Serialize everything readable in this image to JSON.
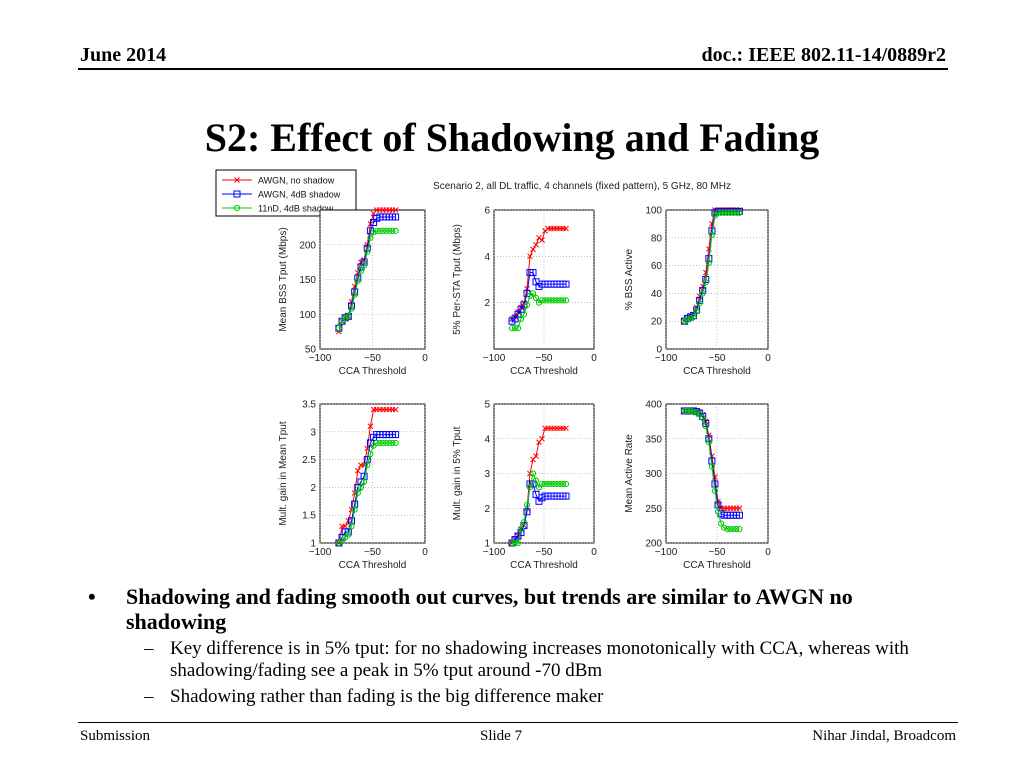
{
  "header": {
    "date": "June 2014",
    "doc": "doc.: IEEE 802.11-14/0889r2"
  },
  "slide_title": "S2: Effect of Shadowing and Fading",
  "figure_title": "Scenario 2, all DL traffic, 4 channels (fixed pattern), 5 GHz, 80 MHz",
  "legend": [
    {
      "name": "AWGN, no shadow",
      "color": "#ff0000",
      "marker": "x"
    },
    {
      "name": "AWGN, 4dB shadow",
      "color": "#0000ff",
      "marker": "square"
    },
    {
      "name": "11nD, 4dB shadow",
      "color": "#00cc00",
      "marker": "circle"
    }
  ],
  "chart_data": [
    {
      "type": "line",
      "ylabel": "Mean BSS Tput (Mbps)",
      "xlabel": "CCA Threshold",
      "xlim": [
        -100,
        0
      ],
      "ylim": [
        50,
        250
      ],
      "xticks": [
        "−100",
        "−50",
        "0"
      ],
      "yticks": [
        "50",
        "100",
        "150",
        "200"
      ],
      "ytick_values": [
        50,
        100,
        150,
        200
      ],
      "x": [
        -82,
        -79,
        -76,
        -73,
        -70,
        -67,
        -64,
        -61,
        -58,
        -55,
        -52,
        -49,
        -46,
        -43,
        -40,
        -37,
        -34,
        -31,
        -28
      ],
      "series": [
        {
          "name": "AWGN, no shadow",
          "values": [
            75,
            90,
            95,
            97,
            118,
            140,
            160,
            175,
            178,
            200,
            230,
            245,
            250,
            250,
            250,
            250,
            250,
            250,
            250
          ]
        },
        {
          "name": "AWGN, 4dB shadow",
          "values": [
            80,
            90,
            95,
            97,
            112,
            132,
            152,
            168,
            175,
            195,
            220,
            232,
            238,
            240,
            240,
            240,
            240,
            240,
            240
          ]
        },
        {
          "name": "11nD, 4dB shadow",
          "values": [
            80,
            90,
            95,
            97,
            108,
            128,
            148,
            162,
            170,
            190,
            210,
            218,
            220,
            220,
            220,
            220,
            220,
            220,
            220
          ]
        }
      ]
    },
    {
      "type": "line",
      "ylabel": "5% Per-STA Tput (Mbps)",
      "xlabel": "CCA Threshold",
      "xlim": [
        -100,
        0
      ],
      "ylim": [
        0,
        6
      ],
      "xticks": [
        "−100",
        "−50",
        "0"
      ],
      "yticks": [
        "2",
        "4",
        "6"
      ],
      "ytick_values": [
        2,
        4,
        6
      ],
      "x": [
        -82,
        -79,
        -76,
        -73,
        -70,
        -67,
        -64,
        -61,
        -58,
        -55,
        -52,
        -49,
        -46,
        -43,
        -40,
        -37,
        -34,
        -31,
        -28
      ],
      "series": [
        {
          "name": "AWGN, no shadow",
          "values": [
            1.3,
            1.4,
            1.6,
            1.8,
            2.0,
            2.6,
            4.0,
            4.3,
            4.5,
            4.8,
            4.7,
            5.1,
            5.2,
            5.2,
            5.2,
            5.2,
            5.2,
            5.2,
            5.2
          ]
        },
        {
          "name": "AWGN, 4dB shadow",
          "values": [
            1.2,
            1.3,
            1.5,
            1.7,
            1.9,
            2.4,
            3.3,
            3.3,
            2.9,
            2.7,
            2.8,
            2.8,
            2.8,
            2.8,
            2.8,
            2.8,
            2.8,
            2.8,
            2.8
          ]
        },
        {
          "name": "11nD, 4dB shadow",
          "values": [
            0.9,
            0.9,
            0.9,
            1.3,
            1.5,
            1.9,
            2.3,
            2.4,
            2.2,
            2.0,
            2.1,
            2.1,
            2.1,
            2.1,
            2.1,
            2.1,
            2.1,
            2.1,
            2.1
          ]
        }
      ]
    },
    {
      "type": "line",
      "ylabel": "% BSS Active",
      "xlabel": "CCA Threshold",
      "xlim": [
        -100,
        0
      ],
      "ylim": [
        0,
        100
      ],
      "xticks": [
        "−100",
        "−50",
        "0"
      ],
      "yticks": [
        "0",
        "20",
        "40",
        "60",
        "80",
        "100"
      ],
      "ytick_values": [
        0,
        20,
        40,
        60,
        80,
        100
      ],
      "x": [
        -82,
        -79,
        -76,
        -73,
        -70,
        -67,
        -64,
        -61,
        -58,
        -55,
        -52,
        -49,
        -46,
        -43,
        -40,
        -37,
        -34,
        -31,
        -28
      ],
      "series": [
        {
          "name": "AWGN, no shadow",
          "values": [
            20,
            22,
            24,
            25,
            30,
            38,
            45,
            55,
            72,
            90,
            100,
            100,
            100,
            100,
            100,
            100,
            100,
            100,
            100
          ]
        },
        {
          "name": "AWGN, 4dB shadow",
          "values": [
            20,
            22,
            23,
            24,
            28,
            35,
            42,
            50,
            65,
            85,
            98,
            99,
            99,
            99,
            99,
            99,
            99,
            99,
            99
          ]
        },
        {
          "name": "11nD, 4dB shadow",
          "values": [
            20,
            21,
            22,
            23,
            27,
            33,
            40,
            48,
            62,
            82,
            96,
            98,
            98,
            98,
            98,
            98,
            98,
            98,
            98
          ]
        }
      ]
    },
    {
      "type": "line",
      "ylabel": "Mult. gain in Mean Tput",
      "xlabel": "CCA Threshold",
      "xlim": [
        -100,
        0
      ],
      "ylim": [
        1,
        3.5
      ],
      "xticks": [
        "−100",
        "−50",
        "0"
      ],
      "yticks": [
        "1",
        "1.5",
        "2",
        "2.5",
        "3",
        "3.5"
      ],
      "ytick_values": [
        1,
        1.5,
        2,
        2.5,
        3,
        3.5
      ],
      "x": [
        -82,
        -79,
        -76,
        -73,
        -70,
        -67,
        -64,
        -61,
        -58,
        -55,
        -52,
        -49,
        -46,
        -43,
        -40,
        -37,
        -34,
        -31,
        -28
      ],
      "series": [
        {
          "name": "AWGN, no shadow",
          "values": [
            1.0,
            1.3,
            1.3,
            1.4,
            1.6,
            1.9,
            2.3,
            2.4,
            2.4,
            2.7,
            3.1,
            3.4,
            3.4,
            3.4,
            3.4,
            3.4,
            3.4,
            3.4,
            3.4
          ]
        },
        {
          "name": "AWGN, 4dB shadow",
          "values": [
            1.0,
            1.1,
            1.2,
            1.2,
            1.4,
            1.7,
            2.0,
            2.1,
            2.2,
            2.5,
            2.8,
            2.9,
            2.95,
            2.95,
            2.95,
            2.95,
            2.95,
            2.95,
            2.95
          ]
        },
        {
          "name": "11nD, 4dB shadow",
          "values": [
            1.0,
            1.05,
            1.1,
            1.15,
            1.3,
            1.6,
            1.9,
            2.0,
            2.1,
            2.4,
            2.6,
            2.75,
            2.8,
            2.8,
            2.8,
            2.8,
            2.8,
            2.8,
            2.8
          ]
        }
      ]
    },
    {
      "type": "line",
      "ylabel": "Mult. gain in 5% Tput",
      "xlabel": "CCA Threshold",
      "xlim": [
        -100,
        0
      ],
      "ylim": [
        1,
        5
      ],
      "xticks": [
        "−100",
        "−50",
        "0"
      ],
      "yticks": [
        "1",
        "2",
        "3",
        "4",
        "5"
      ],
      "ytick_values": [
        1,
        2,
        3,
        4,
        5
      ],
      "x": [
        -82,
        -79,
        -76,
        -73,
        -70,
        -67,
        -64,
        -61,
        -58,
        -55,
        -52,
        -49,
        -46,
        -43,
        -40,
        -37,
        -34,
        -31,
        -28
      ],
      "series": [
        {
          "name": "AWGN, no shadow",
          "values": [
            1.0,
            1.1,
            1.2,
            1.4,
            1.5,
            2.0,
            3.0,
            3.4,
            3.5,
            3.9,
            4.0,
            4.3,
            4.3,
            4.3,
            4.3,
            4.3,
            4.3,
            4.3,
            4.3
          ]
        },
        {
          "name": "AWGN, 4dB shadow",
          "values": [
            1.0,
            1.1,
            1.2,
            1.3,
            1.5,
            1.9,
            2.7,
            2.7,
            2.4,
            2.2,
            2.3,
            2.35,
            2.35,
            2.35,
            2.35,
            2.35,
            2.35,
            2.35,
            2.35
          ]
        },
        {
          "name": "11nD, 4dB shadow",
          "values": [
            1.0,
            1.0,
            1.0,
            1.4,
            1.6,
            2.1,
            2.6,
            3.0,
            2.8,
            2.6,
            2.7,
            2.7,
            2.7,
            2.7,
            2.7,
            2.7,
            2.7,
            2.7,
            2.7
          ]
        }
      ]
    },
    {
      "type": "line",
      "ylabel": "Mean Active Rate",
      "xlabel": "CCA Threshold",
      "xlim": [
        -100,
        0
      ],
      "ylim": [
        200,
        400
      ],
      "xticks": [
        "−100",
        "−50",
        "0"
      ],
      "yticks": [
        "200",
        "250",
        "300",
        "350",
        "400"
      ],
      "ytick_values": [
        200,
        250,
        300,
        350,
        400
      ],
      "x": [
        -82,
        -79,
        -76,
        -73,
        -70,
        -67,
        -64,
        -61,
        -58,
        -55,
        -52,
        -49,
        -46,
        -43,
        -40,
        -37,
        -34,
        -31,
        -28
      ],
      "series": [
        {
          "name": "AWGN, no shadow",
          "values": [
            390,
            390,
            390,
            390,
            390,
            388,
            385,
            375,
            355,
            325,
            295,
            260,
            250,
            250,
            250,
            250,
            250,
            250,
            250
          ]
        },
        {
          "name": "AWGN, 4dB shadow",
          "values": [
            390,
            390,
            390,
            390,
            389,
            387,
            382,
            372,
            350,
            318,
            285,
            255,
            242,
            240,
            240,
            240,
            240,
            240,
            240
          ]
        },
        {
          "name": "11nD, 4dB shadow",
          "values": [
            390,
            390,
            390,
            389,
            388,
            385,
            380,
            368,
            345,
            310,
            275,
            245,
            228,
            222,
            220,
            220,
            220,
            220,
            220
          ]
        }
      ]
    }
  ],
  "bullets": {
    "main": "Shadowing and fading smooth out curves, but trends are similar to AWGN no shadowing",
    "sub": [
      "Key difference is in 5% tput: for no shadowing increases monotonically with CCA, whereas with shadowing/fading see a peak in 5% tput around -70 dBm",
      "Shadowing rather than fading is the big difference maker"
    ],
    "dash": "–"
  },
  "footer": {
    "left": "Submission",
    "center": "Slide 7",
    "right": "Nihar Jindal, Broadcom"
  }
}
